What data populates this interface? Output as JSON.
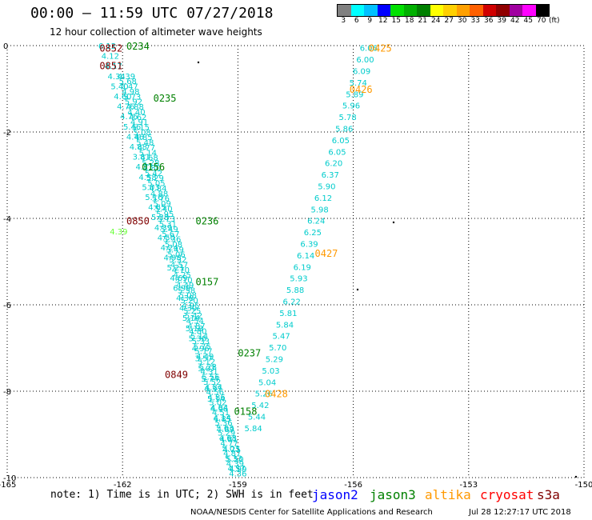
{
  "header": {
    "title": "00:00 – 11:59 UTC 07/27/2018",
    "subtitle": "12 hour collection of altimeter wave heights"
  },
  "colorbar": {
    "labels": [
      "3",
      "6",
      "9",
      "12",
      "15",
      "18",
      "21",
      "24",
      "27",
      "30",
      "33",
      "36",
      "39",
      "42",
      "45",
      "70"
    ],
    "unit": "(ft)",
    "colors": [
      "#808080",
      "#00ffff",
      "#00c0ff",
      "#0000ff",
      "#00e000",
      "#00b000",
      "#008000",
      "#ffff00",
      "#ffd000",
      "#ffa000",
      "#ff6000",
      "#d00000",
      "#900000",
      "#a000a0",
      "#ff00ff",
      "#000000"
    ]
  },
  "footer": {
    "note": "note: 1) Time is in UTC; 2) SWH is in feet",
    "credit": "NOAA/NESDIS Center for Satellite Applications and Research",
    "timestamp": "Jul 28 12:27:17 UTC 2018"
  },
  "legend": [
    {
      "name": "jason2",
      "color": "#0000ff"
    },
    {
      "name": "jason3",
      "color": "#008000"
    },
    {
      "name": "altika",
      "color": "#ff9900"
    },
    {
      "name": "cryosat",
      "color": "#ff0000"
    },
    {
      "name": "s3a",
      "color": "#800000"
    }
  ],
  "chart_data": {
    "type": "scatter",
    "xlim": [
      -165,
      -150
    ],
    "ylim": [
      -10,
      0
    ],
    "x_ticks": [
      -165,
      -162,
      -159,
      -156,
      -153,
      -150
    ],
    "y_ticks": [
      0,
      -2,
      -4,
      -6,
      -8,
      -10
    ],
    "x_tick_labels": [
      "-165",
      "-162",
      "-159",
      "-156",
      "-153",
      "-150"
    ],
    "y_tick_labels": [
      "0",
      "-2",
      "-4",
      "-6",
      "-8",
      "-10"
    ],
    "grid": true,
    "tracks": [
      {
        "mission": "altika",
        "color": "#00cccc",
        "x_start": -155.6,
        "y_start": -0.05,
        "x_end": -158.6,
        "y_end": -8.85,
        "values": [
          "6.06",
          "6.00",
          "6.09",
          "5.74",
          "5.89",
          "5.96",
          "5.78",
          "5.86",
          "6.05",
          "6.05",
          "6.20",
          "6.37",
          "5.90",
          "6.12",
          "5.98",
          "6.24",
          "6.25",
          "6.39",
          "6.14",
          "6.19",
          "5.93",
          "5.88",
          "6.22",
          "5.81",
          "5.84",
          "5.47",
          "5.70",
          "5.29",
          "5.03",
          "5.04",
          "5.26",
          "5.42",
          "5.44",
          "5.84"
        ],
        "times": [
          {
            "text": "0425",
            "x": -155.3,
            "y": -0.05
          },
          {
            "text": "0426",
            "x": -155.8,
            "y": -1.0
          },
          {
            "text": "0427",
            "x": -156.7,
            "y": -4.8
          },
          {
            "text": "0428",
            "x": -158.0,
            "y": -8.05
          }
        ]
      },
      {
        "mission": "jason3",
        "color": "#00cccc",
        "x_start": -162.4,
        "y_start": 0.0,
        "x_end": -159.0,
        "y_end": -9.8,
        "values": [
          "6.12",
          "4.12",
          "4.17",
          "4.34",
          "5.40",
          "4.60",
          "4.76",
          "4.76",
          "5.46",
          "4.46",
          "4.88",
          "3.81",
          "4.73",
          "4.58",
          "5.03",
          "5.16",
          "4.65",
          "5.38",
          "4.39",
          "4.50",
          "4.24",
          "4.98",
          "5.21",
          "4.69",
          "6.99",
          "4.38",
          "4.30",
          "5.14",
          "5.18",
          "5.36",
          "4.96",
          "3.57",
          "5.07",
          "5.74",
          "4.37",
          "5.14",
          "4.96",
          "4.85",
          "4.89",
          "4.81",
          "4.25",
          "5.50",
          "4.99"
        ],
        "times": [
          {
            "text": "0234",
            "x": -161.6,
            "y": 0.0
          },
          {
            "text": "0235",
            "x": -160.9,
            "y": -1.2
          },
          {
            "text": "0236",
            "x": -159.8,
            "y": -4.05
          },
          {
            "text": "0237",
            "x": -158.7,
            "y": -7.1
          }
        ]
      },
      {
        "mission": "jason3",
        "color": "#00cccc",
        "x_start": -161.9,
        "y_start": -0.7,
        "x_end": -159.0,
        "y_end": -9.9,
        "values": [
          "4.39",
          "5.68",
          "5.47",
          "4.98",
          "5.73",
          "5.92",
          "4.88",
          "4.40",
          "4.62",
          "4.91",
          "5.15",
          "5.08",
          "4.85",
          "5.48",
          "4.77",
          "5.14",
          "4.68",
          "5.28",
          "4.30",
          "5.42",
          "5.29",
          "5.05",
          "4.84",
          "4.88",
          "5.76",
          "5.09",
          "5.40",
          "5.95",
          "5.73",
          "5.31",
          "5.49",
          "5.67",
          "5.36",
          "5.08",
          "5.49",
          "5.06",
          "5.32",
          "4.57",
          "4.70",
          "4.25",
          "5.10",
          "4.49",
          "5.58",
          "5.08",
          "5.20",
          "4.95",
          "5.25",
          "5.42",
          "4.54",
          "4.87",
          "4.80",
          "5.14",
          "5.33",
          "5.75",
          "5.17",
          "4.49",
          "5.12",
          "5.28",
          "4.31",
          "5.56",
          "5.52",
          "4.84",
          "4.56",
          "4.86",
          "5.02",
          "4.84",
          "4.51",
          "4.14",
          "5.36",
          "5.63",
          "5.29",
          "4.68",
          "4.77",
          "5.03",
          "4.87",
          "5.33",
          "4.39",
          "4.57",
          "4.36"
        ],
        "times": [
          {
            "text": "0156",
            "x": -161.2,
            "y": -2.8
          },
          {
            "text": "0157",
            "x": -159.8,
            "y": -5.45
          },
          {
            "text": "0158",
            "x": -158.8,
            "y": -8.45
          }
        ]
      },
      {
        "mission": "s3a",
        "color": "#00cccc",
        "x_start": -162.0,
        "y_start": -0.05,
        "x_end": -159.5,
        "y_end": -9.2,
        "values": [],
        "times": [
          {
            "text": "0852",
            "x": -162.3,
            "y": -0.05
          },
          {
            "text": "0851",
            "x": -162.3,
            "y": -0.45
          },
          {
            "text": "0850",
            "x": -161.6,
            "y": -4.05
          },
          {
            "text": "0849",
            "x": -160.6,
            "y": -7.6
          }
        ]
      }
    ],
    "highlight_point": {
      "text": "4.39",
      "color": "#66ff33",
      "x": -162.1,
      "y": -4.3
    }
  }
}
